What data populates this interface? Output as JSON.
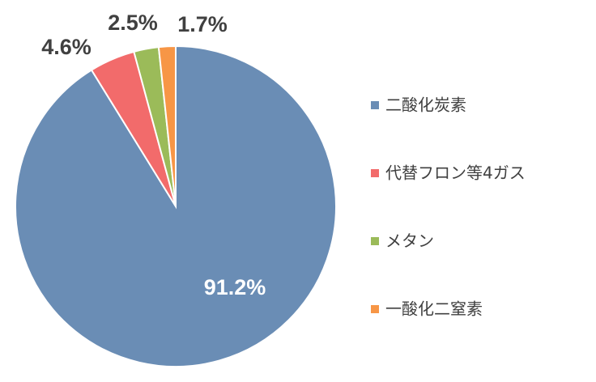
{
  "chart_data": {
    "type": "pie",
    "categories": [
      "二酸化炭素",
      "代替フロン等4ガス",
      "メタン",
      "一酸化二窒素"
    ],
    "values": [
      91.2,
      4.6,
      2.5,
      1.7
    ],
    "value_labels": [
      "91.2%",
      "4.6%",
      "2.5%",
      "1.7%"
    ],
    "colors": [
      "#6a8db5",
      "#f26b6b",
      "#9bbb59",
      "#f79646"
    ],
    "legend": "right"
  }
}
